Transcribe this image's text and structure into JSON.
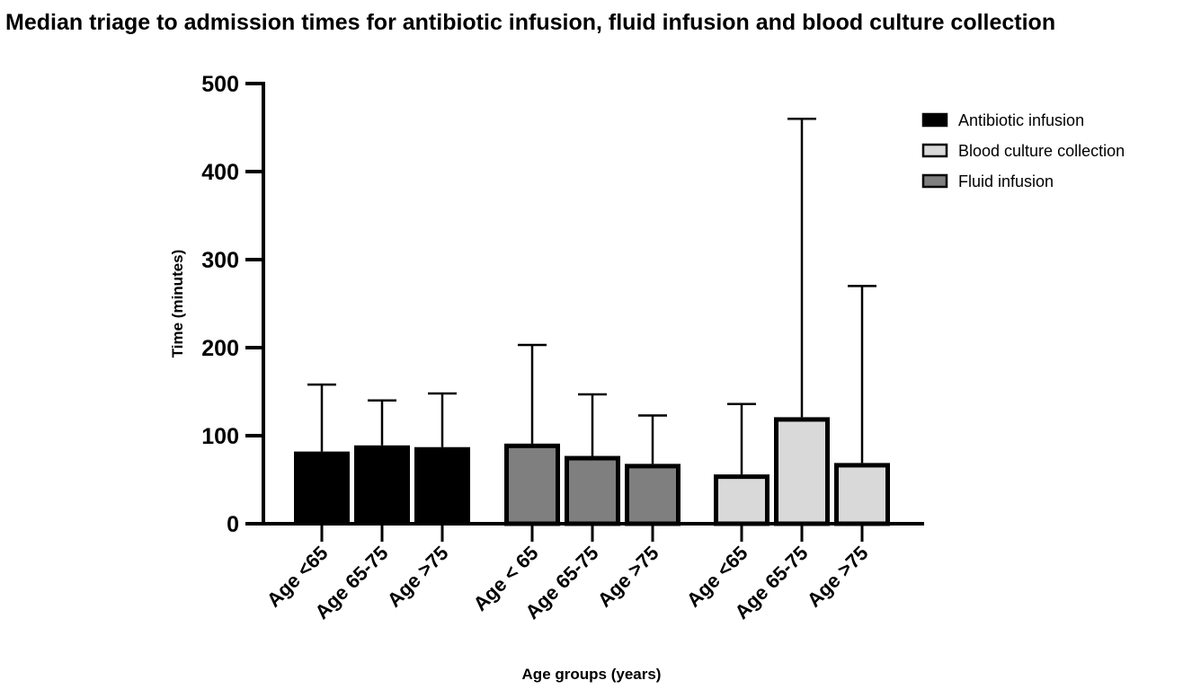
{
  "chart_data": {
    "type": "bar",
    "title": "Median triage to admission times for antibiotic infusion, fluid infusion and blood culture collection",
    "xlabel": "Age groups (years)",
    "ylabel": "Time (minutes)",
    "ylim": [
      0,
      500
    ],
    "yticks": [
      0,
      100,
      200,
      300,
      400,
      500
    ],
    "grid": false,
    "legend_position": "top-right",
    "series": [
      {
        "name": "Antibiotic infusion",
        "color": "#000000",
        "categories": [
          "Age <65",
          "Age 65-75",
          "Age >75"
        ],
        "values": [
          82,
          89,
          87
        ],
        "error_upper": [
          158,
          140,
          148
        ]
      },
      {
        "name": "Fluid infusion",
        "color": "#7f7f7f",
        "categories": [
          "Age < 65",
          "Age 65-75",
          "Age >75"
        ],
        "values": [
          91,
          77,
          68
        ],
        "error_upper": [
          203,
          147,
          123
        ]
      },
      {
        "name": "Blood culture collection",
        "color": "#d9d9d9",
        "categories": [
          "Age <65",
          "Age 65-75",
          "Age >75"
        ],
        "values": [
          56,
          121,
          69
        ],
        "error_upper": [
          136,
          460,
          270
        ]
      }
    ],
    "legend_order": [
      "Antibiotic infusion",
      "Blood culture collection",
      "Fluid infusion"
    ]
  }
}
